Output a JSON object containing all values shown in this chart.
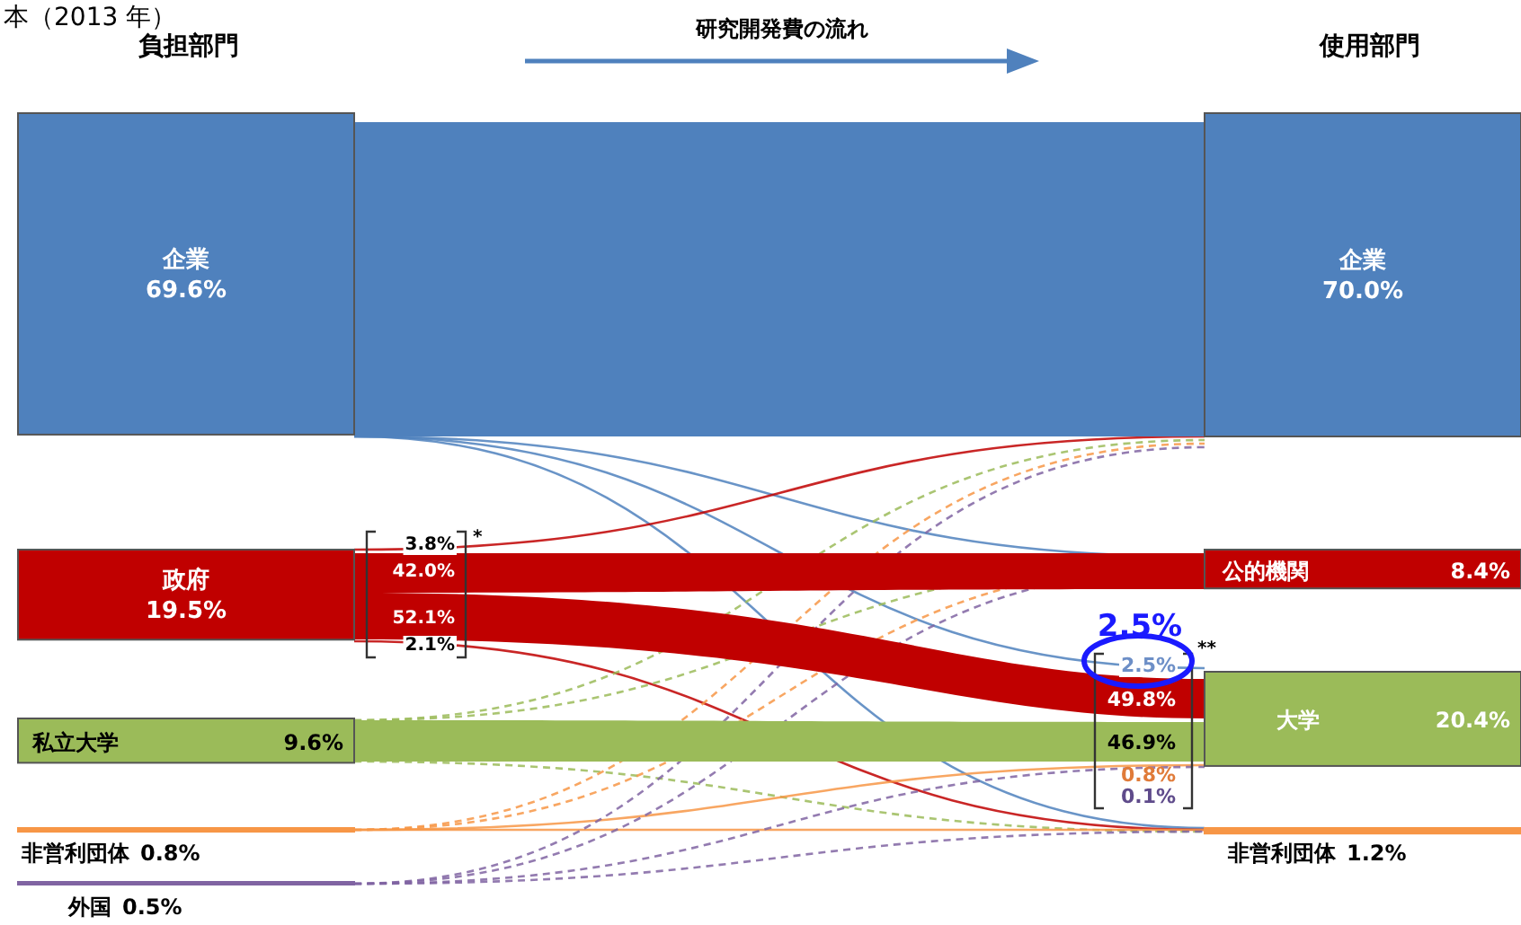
{
  "chart_data": {
    "type": "other",
    "title": "本（2013 年）",
    "categories": [
      "企業",
      "政府",
      "私立大学",
      "非営利団体",
      "外国",
      "企業",
      "公的機関",
      "大学",
      "非営利団体"
    ],
    "values": [
      69.6,
      19.5,
      9.6,
      0.8,
      0.5,
      70.0,
      8.4,
      20.4,
      1.2
    ],
    "value_labels": [
      "69.6%",
      "19.5%",
      "9.6%",
      "0.8%",
      "0.5%",
      "70.0%",
      "8.4%",
      "20.4%",
      "1.2%"
    ],
    "colors": [
      "#4f81bd",
      "#c00000",
      "#9bbb59",
      "#f79646",
      "#8064a2",
      "#4f81bd",
      "#c00000",
      "#9bbb59",
      "#f79646"
    ],
    "annotations": [
      "負担部門",
      "使用部門",
      "研究開発費の流れ",
      "3.8%",
      "42.0%",
      "52.1%",
      "2.1%",
      "*",
      "2.5%",
      "49.8%",
      "46.9%",
      "0.8%",
      "0.1%",
      "**",
      "2.5%"
    ]
  }
}
